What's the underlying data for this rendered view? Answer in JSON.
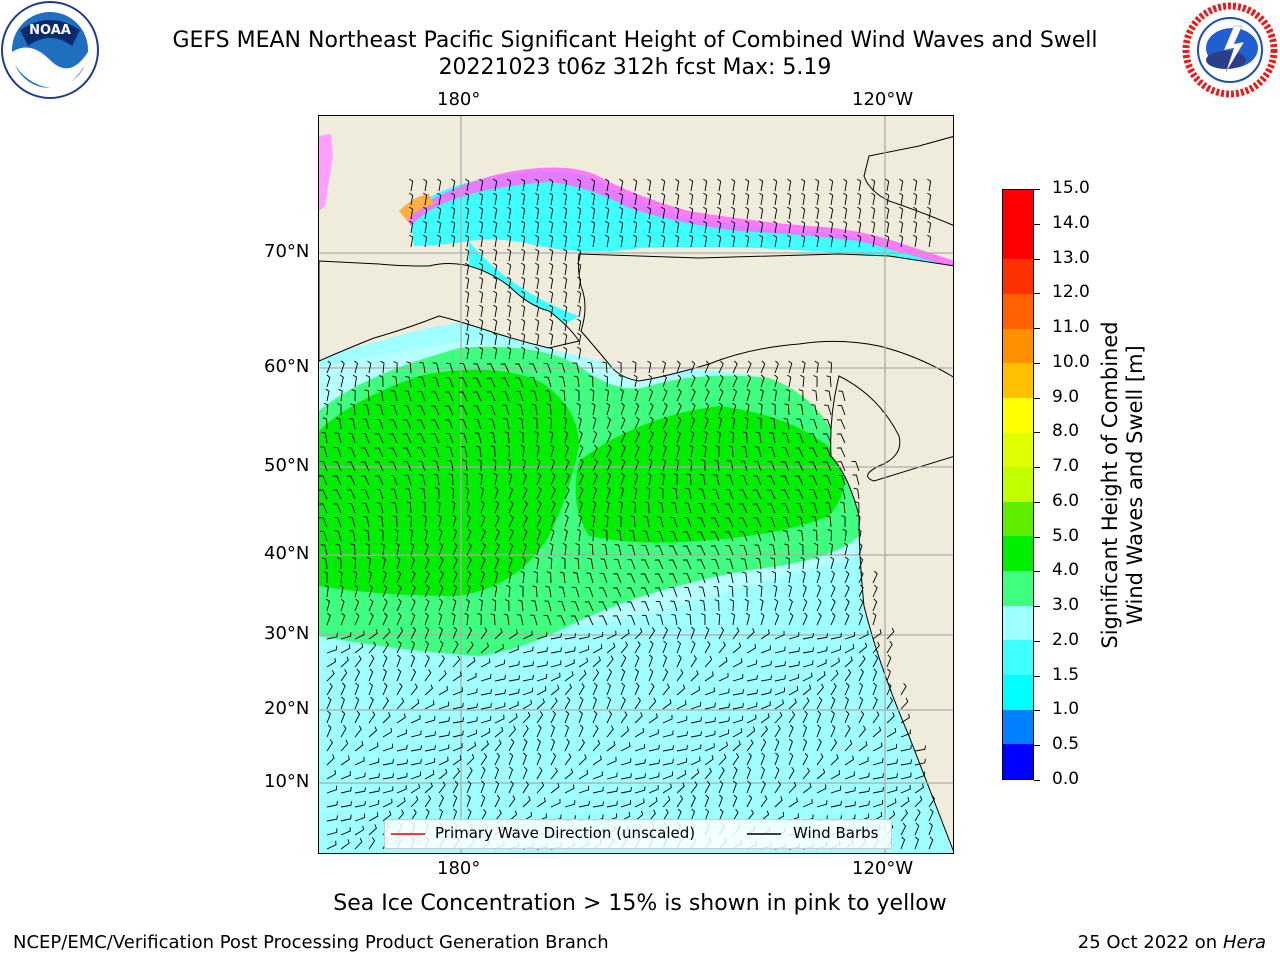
{
  "header": {
    "title_line1": "GEFS MEAN Northeast Pacific Significant Height of Combined Wind Waves and Swell",
    "title_line2": "20221023 t06z 312h fcst   Max: 5.19"
  },
  "logos": {
    "noaa_text": "NOAA",
    "noaa_ring_text": "NATIONAL OCEANIC AND ATMOSPHERIC ADMINISTRATION · U.S. DEPARTMENT OF COMMERCE",
    "nws_ring_text": "NATIONAL WEATHER SERVICE"
  },
  "map": {
    "lon_labels_top": [
      "180°",
      "120°W"
    ],
    "lon_labels_bottom": [
      "180°",
      "120°W"
    ],
    "lat_labels": [
      "70°N",
      "60°N",
      "50°N",
      "40°N",
      "30°N",
      "20°N",
      "10°N"
    ],
    "legend": {
      "wave_label": "Primary Wave Direction (unscaled)",
      "wind_label": "Wind Barbs"
    }
  },
  "colorbar": {
    "title_line1": "Significant Height of Combined",
    "title_line2": "Wind Waves and Swell [m]",
    "tick_labels": [
      "0.0",
      "0.5",
      "1.0",
      "1.5",
      "2.0",
      "3.0",
      "4.0",
      "5.0",
      "6.0",
      "7.0",
      "8.0",
      "9.0",
      "10.0",
      "11.0",
      "12.0",
      "13.0",
      "14.0",
      "15.0"
    ],
    "colors": [
      "#0000ff",
      "#0080ff",
      "#00ffff",
      "#40ffff",
      "#a0ffff",
      "#40ff80",
      "#00ee00",
      "#60ee00",
      "#c0ff00",
      "#e0ff00",
      "#ffff00",
      "#ffc000",
      "#ff9000",
      "#ff6000",
      "#ff3000",
      "#ff0000",
      "#ff0000"
    ]
  },
  "footer": {
    "note": "Sea Ice Concentration > 15% is shown in pink to yellow",
    "left": "NCEP/EMC/Verification Post Processing Product Generation Branch",
    "right_date": "25 Oct 2022 on ",
    "right_host": "Hera"
  }
}
